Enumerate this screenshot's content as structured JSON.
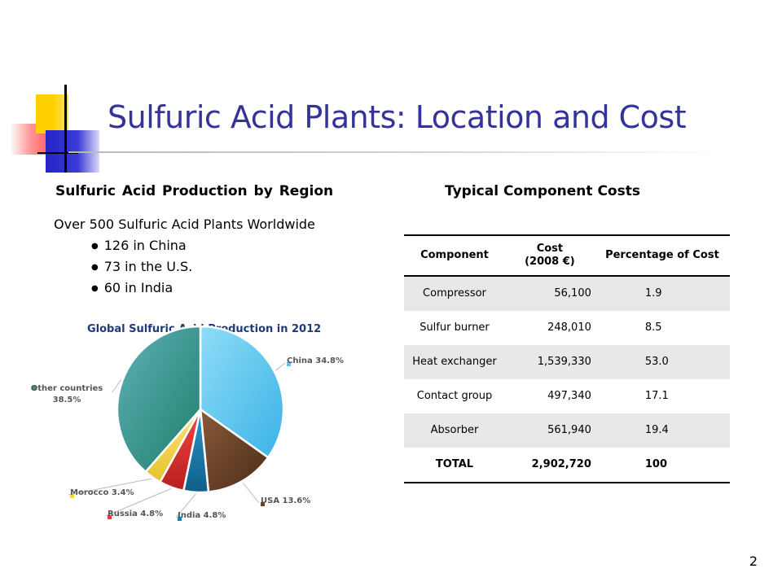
{
  "slide": {
    "title": "Sulfuric Acid Plants: Location and Cost",
    "page_number": "2"
  },
  "left": {
    "heading": "Sulfuric Acid Production by Region",
    "plants_line": "Over 500 Sulfuric Acid Plants Worldwide",
    "bullets": [
      "126 in China",
      "73 in the U.S.",
      "60 in India"
    ]
  },
  "right": {
    "heading": "Typical Component Costs"
  },
  "table": {
    "headers": [
      "Component",
      "Cost\n(2008 €)",
      "Percentage of Cost"
    ],
    "header_component": "Component",
    "header_cost_1": "Cost",
    "header_cost_2": "(2008 €)",
    "header_pct": "Percentage of Cost",
    "rows": [
      {
        "component": "Compressor",
        "cost": "56,100",
        "pct": "1.9"
      },
      {
        "component": "Sulfur burner",
        "cost": "248,010",
        "pct": "8.5"
      },
      {
        "component": "Heat exchanger",
        "cost": "1,539,330",
        "pct": "53.0"
      },
      {
        "component": "Contact group",
        "cost": "497,340",
        "pct": "17.1"
      },
      {
        "component": "Absorber",
        "cost": "561,940",
        "pct": "19.4"
      }
    ],
    "total": {
      "component": "TOTAL",
      "cost": "2,902,720",
      "pct": "100"
    }
  },
  "chart_data": {
    "type": "pie",
    "title": "Global Sulfuric Acid Production in 2012",
    "slices": [
      {
        "label": "China 34.8%",
        "name": "China",
        "value": 34.8,
        "color": "#5ec6ef"
      },
      {
        "label": "USA 13.6%",
        "name": "USA",
        "value": 13.6,
        "color": "#6b4226"
      },
      {
        "label": "India 4.8%",
        "name": "India",
        "value": 4.8,
        "color": "#1a7fb5"
      },
      {
        "label": "Russia 4.8%",
        "name": "Russia",
        "value": 4.8,
        "color": "#e03a3a"
      },
      {
        "label": "Morocco 3.4%",
        "name": "Morocco",
        "value": 3.4,
        "color": "#f5d648"
      },
      {
        "label": "Other countries\n38.5%",
        "name": "Other countries",
        "value": 38.5,
        "color": "#3a9a8a"
      }
    ]
  },
  "colors": {
    "title": "#333399",
    "accent_yellow": "#ffd100",
    "accent_blue": "#2424c8",
    "accent_red": "#ff2a2a"
  }
}
